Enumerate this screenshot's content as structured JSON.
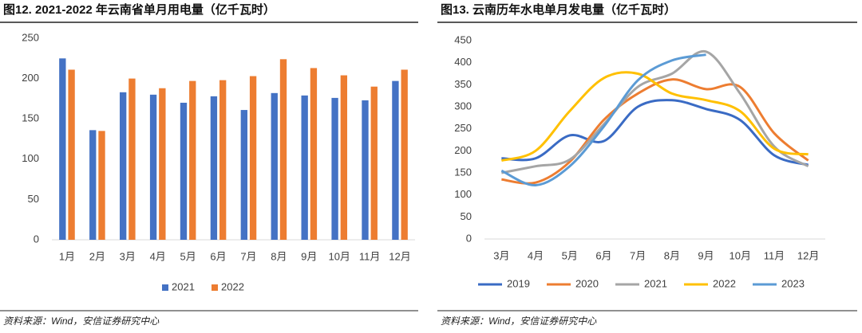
{
  "chart_data": [
    {
      "type": "bar",
      "title": "图12. 2021-2022 年云南省单月用电量（亿千瓦时）",
      "categories": [
        "1月",
        "2月",
        "3月",
        "4月",
        "5月",
        "6月",
        "7月",
        "8月",
        "9月",
        "10月",
        "11月",
        "12月"
      ],
      "series": [
        {
          "name": "2021",
          "color": "#4472c4",
          "values": [
            225,
            136,
            183,
            180,
            170,
            178,
            161,
            182,
            179,
            176,
            173,
            197
          ]
        },
        {
          "name": "2022",
          "color": "#ed7d31",
          "values": [
            211,
            135,
            200,
            188,
            197,
            198,
            203,
            224,
            213,
            204,
            190,
            211
          ]
        }
      ],
      "ylim": [
        0,
        250
      ],
      "yticks": [
        0,
        50,
        100,
        150,
        200,
        250
      ],
      "grid": false,
      "source": "资料来源：Wind，安信证券研究中心"
    },
    {
      "type": "line",
      "title": "图13. 云南历年水电单月发电量（亿千瓦时）",
      "categories": [
        "3月",
        "4月",
        "5月",
        "6月",
        "7月",
        "8月",
        "9月",
        "10月",
        "11月",
        "12月"
      ],
      "series": [
        {
          "name": "2019",
          "color": "#3a6bc4",
          "values": [
            183,
            183,
            235,
            222,
            300,
            315,
            295,
            270,
            190,
            168
          ]
        },
        {
          "name": "2020",
          "color": "#ed7d31",
          "values": [
            135,
            128,
            175,
            270,
            330,
            362,
            340,
            345,
            240,
            178
          ]
        },
        {
          "name": "2021",
          "color": "#a5a5a5",
          "values": [
            150,
            165,
            180,
            260,
            345,
            375,
            425,
            330,
            210,
            165
          ]
        },
        {
          "name": "2022",
          "color": "#ffc000",
          "values": [
            178,
            200,
            290,
            365,
            375,
            330,
            315,
            290,
            205,
            192
          ]
        },
        {
          "name": "2023",
          "color": "#5b9bd5",
          "values": [
            155,
            122,
            165,
            255,
            360,
            405,
            418,
            null,
            null,
            null
          ]
        }
      ],
      "ylim": [
        0,
        450
      ],
      "yticks": [
        0,
        50,
        100,
        150,
        200,
        250,
        300,
        350,
        400,
        450
      ],
      "grid": false,
      "source": "资料来源：Wind，安信证券研究中心"
    }
  ]
}
